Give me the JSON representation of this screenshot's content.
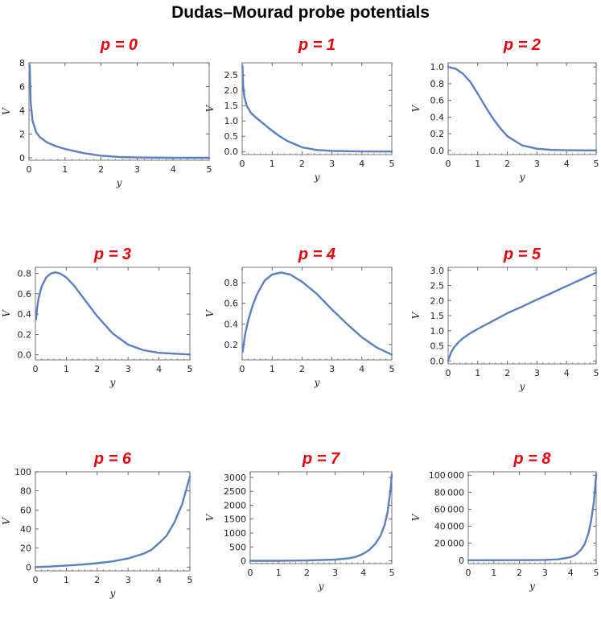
{
  "title": "Dudas–Mourad probe potentials",
  "colors": {
    "curve": "#5b7fbf",
    "panel_title": "#e8000b",
    "frame": "#555555"
  },
  "chart_data": [
    {
      "type": "line",
      "title": "p = 0",
      "xlabel": "y",
      "ylabel": "V",
      "xlim": [
        0,
        5
      ],
      "ylim": [
        -0.2,
        8
      ],
      "xticks": [
        0,
        1,
        2,
        3,
        4,
        5
      ],
      "yticks": [
        0,
        2,
        4,
        6,
        8
      ],
      "ytick_labels": [
        "0",
        "2",
        "4",
        "6",
        "8"
      ],
      "x": [
        0.02,
        0.05,
        0.1,
        0.2,
        0.3,
        0.5,
        0.75,
        1,
        1.5,
        2,
        2.5,
        3,
        4,
        5
      ],
      "y": [
        7.8,
        4.6,
        3.1,
        2.15,
        1.75,
        1.3,
        0.98,
        0.75,
        0.4,
        0.18,
        0.07,
        0.03,
        0.005,
        0.0
      ]
    },
    {
      "type": "line",
      "title": "p = 1",
      "xlabel": "y",
      "ylabel": "V",
      "xlim": [
        0,
        5
      ],
      "ylim": [
        -0.1,
        2.9
      ],
      "xticks": [
        0,
        1,
        2,
        3,
        4,
        5
      ],
      "yticks": [
        0,
        0.5,
        1,
        1.5,
        2,
        2.5
      ],
      "ytick_labels": [
        "0.0",
        "0.5",
        "1.0",
        "1.5",
        "2.0",
        "2.5"
      ],
      "x": [
        0.01,
        0.03,
        0.07,
        0.15,
        0.3,
        0.5,
        0.75,
        1,
        1.25,
        1.5,
        2,
        2.5,
        3,
        4,
        5
      ],
      "y": [
        2.8,
        2.2,
        1.8,
        1.5,
        1.25,
        1.08,
        0.88,
        0.68,
        0.5,
        0.35,
        0.14,
        0.05,
        0.02,
        0.003,
        0.0
      ]
    },
    {
      "type": "line",
      "title": "p = 2",
      "xlabel": "y",
      "ylabel": "V",
      "xlim": [
        0,
        5
      ],
      "ylim": [
        -0.05,
        1.05
      ],
      "xticks": [
        0,
        1,
        2,
        3,
        4,
        5
      ],
      "yticks": [
        0,
        0.2,
        0.4,
        0.6,
        0.8,
        1
      ],
      "ytick_labels": [
        "0.0",
        "0.2",
        "0.4",
        "0.6",
        "0.8",
        "1.0"
      ],
      "x": [
        0,
        0.25,
        0.5,
        0.75,
        1,
        1.25,
        1.5,
        1.75,
        2,
        2.5,
        3,
        3.5,
        4,
        5
      ],
      "y": [
        1.0,
        0.98,
        0.92,
        0.82,
        0.68,
        0.53,
        0.39,
        0.27,
        0.17,
        0.06,
        0.02,
        0.006,
        0.002,
        0.0
      ]
    },
    {
      "type": "line",
      "title": "p = 3",
      "xlabel": "y",
      "ylabel": "V",
      "xlim": [
        0,
        5
      ],
      "ylim": [
        -0.05,
        0.86
      ],
      "xticks": [
        0,
        1,
        2,
        3,
        4,
        5
      ],
      "yticks": [
        0,
        0.2,
        0.4,
        0.6,
        0.8
      ],
      "ytick_labels": [
        "0.0",
        "0.2",
        "0.4",
        "0.6",
        "0.8"
      ],
      "x": [
        0.02,
        0.05,
        0.1,
        0.2,
        0.35,
        0.5,
        0.65,
        0.8,
        1,
        1.25,
        1.5,
        2,
        2.5,
        3,
        3.5,
        4,
        5
      ],
      "y": [
        0.35,
        0.45,
        0.55,
        0.67,
        0.76,
        0.8,
        0.81,
        0.8,
        0.76,
        0.68,
        0.58,
        0.38,
        0.21,
        0.1,
        0.045,
        0.02,
        0.003
      ]
    },
    {
      "type": "line",
      "title": "p = 4",
      "xlabel": "y",
      "ylabel": "V",
      "xlim": [
        0,
        5
      ],
      "ylim": [
        0.05,
        0.95
      ],
      "xticks": [
        0,
        1,
        2,
        3,
        4,
        5
      ],
      "yticks": [
        0.2,
        0.4,
        0.6,
        0.8
      ],
      "ytick_labels": [
        "0.2",
        "0.4",
        "0.6",
        "0.8"
      ],
      "x": [
        0.02,
        0.05,
        0.1,
        0.2,
        0.35,
        0.5,
        0.75,
        1,
        1.3,
        1.6,
        2,
        2.5,
        3,
        3.5,
        4,
        4.5,
        5
      ],
      "y": [
        0.13,
        0.2,
        0.3,
        0.43,
        0.58,
        0.69,
        0.82,
        0.88,
        0.9,
        0.88,
        0.81,
        0.69,
        0.54,
        0.4,
        0.27,
        0.17,
        0.1
      ]
    },
    {
      "type": "line",
      "title": "p = 5",
      "xlabel": "y",
      "ylabel": "V",
      "xlim": [
        0,
        5
      ],
      "ylim": [
        -0.1,
        3.1
      ],
      "xticks": [
        0,
        1,
        2,
        3,
        4,
        5
      ],
      "yticks": [
        0,
        0.5,
        1,
        1.5,
        2,
        2.5,
        3
      ],
      "ytick_labels": [
        "0.0",
        "0.5",
        "1.0",
        "1.5",
        "2.0",
        "2.5",
        "3.0"
      ],
      "x": [
        0,
        0.05,
        0.1,
        0.2,
        0.35,
        0.5,
        0.75,
        1,
        1.5,
        2,
        2.5,
        3,
        3.5,
        4,
        4.5,
        5
      ],
      "y": [
        0.0,
        0.15,
        0.28,
        0.45,
        0.62,
        0.75,
        0.92,
        1.06,
        1.32,
        1.58,
        1.8,
        2.03,
        2.25,
        2.48,
        2.7,
        2.93
      ]
    },
    {
      "type": "line",
      "title": "p = 6",
      "xlabel": "y",
      "ylabel": "V",
      "xlim": [
        0,
        5
      ],
      "ylim": [
        -4,
        100
      ],
      "xticks": [
        0,
        1,
        2,
        3,
        4,
        5
      ],
      "yticks": [
        0,
        20,
        40,
        60,
        80,
        100
      ],
      "ytick_labels": [
        "0",
        "20",
        "40",
        "60",
        "80",
        "100"
      ],
      "x": [
        0,
        0.5,
        1,
        1.5,
        2,
        2.5,
        3,
        3.5,
        3.75,
        4,
        4.25,
        4.5,
        4.75,
        5
      ],
      "y": [
        0,
        0.6,
        1.6,
        2.6,
        4,
        6,
        9,
        14,
        18,
        25,
        33,
        47,
        66,
        95
      ]
    },
    {
      "type": "line",
      "title": "p = 7",
      "xlabel": "y",
      "ylabel": "V",
      "xlim": [
        0,
        5
      ],
      "ylim": [
        -100,
        3200
      ],
      "xticks": [
        0,
        1,
        2,
        3,
        4,
        5
      ],
      "yticks": [
        0,
        500,
        1000,
        1500,
        2000,
        2500,
        3000
      ],
      "ytick_labels": [
        "0",
        "500",
        "1000",
        "1500",
        "2000",
        "2500",
        "3000"
      ],
      "x": [
        0,
        1,
        2,
        3,
        3.5,
        3.75,
        4,
        4.2,
        4.4,
        4.6,
        4.75,
        4.85,
        4.95,
        5
      ],
      "y": [
        0,
        2,
        12,
        45,
        95,
        150,
        260,
        390,
        590,
        900,
        1300,
        1750,
        2500,
        3100
      ]
    },
    {
      "type": "line",
      "title": "p = 8",
      "xlabel": "y",
      "ylabel": "V",
      "xlim": [
        0,
        5
      ],
      "ylim": [
        -4000,
        104000
      ],
      "xticks": [
        0,
        1,
        2,
        3,
        4,
        5
      ],
      "yticks": [
        0,
        20000,
        40000,
        60000,
        80000,
        100000
      ],
      "ytick_labels": [
        "0",
        "20 000",
        "40 000",
        "60 000",
        "80 000",
        "100 000"
      ],
      "x": [
        0,
        2,
        3,
        3.5,
        4,
        4.2,
        4.4,
        4.55,
        4.7,
        4.8,
        4.9,
        4.95,
        5
      ],
      "y": [
        0,
        50,
        400,
        1000,
        3500,
        6500,
        12000,
        19000,
        32000,
        46000,
        66000,
        82000,
        101000
      ]
    }
  ]
}
